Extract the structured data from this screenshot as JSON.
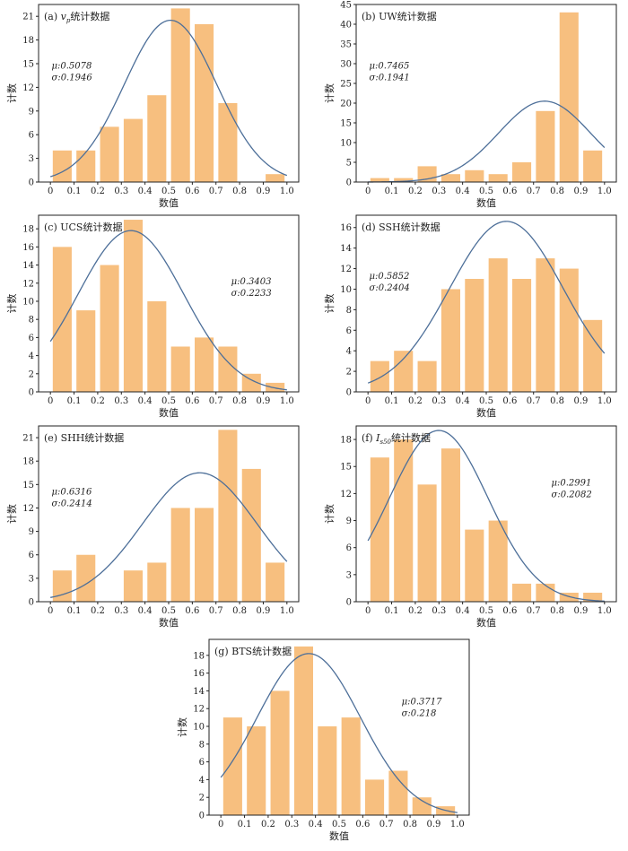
{
  "figure": {
    "xlabel": "数值",
    "ylabel": "计数",
    "colors": {
      "bar": "#f7bf7f",
      "curve": "#4d6f99"
    }
  },
  "chart_data": [
    {
      "id": "a",
      "type": "bar",
      "title": "(a) v_p统计数据",
      "title_parts": [
        "(a) ",
        "v",
        "p",
        "统计数据"
      ],
      "bar_centers": [
        0.05,
        0.15,
        0.25,
        0.35,
        0.45,
        0.55,
        0.65,
        0.75,
        0.95
      ],
      "values": [
        4,
        4,
        7,
        8,
        11,
        22,
        20,
        10,
        1
      ],
      "xticks": [
        "0",
        "0.1",
        "0.2",
        "0.3",
        "0.4",
        "0.5",
        "0.6",
        "0.7",
        "0.8",
        "0.9",
        "1.0"
      ],
      "yticks": [
        0,
        3,
        6,
        9,
        12,
        15,
        18,
        21
      ],
      "ylim": [
        0,
        22.5
      ],
      "xlim": [
        -0.05,
        1.05
      ],
      "mu": 0.5078,
      "sigma": 0.1946,
      "mu_label": "μ:0.5078",
      "sigma_label": "σ:0.1946",
      "curve_peak": 20.5
    },
    {
      "id": "b",
      "type": "bar",
      "title": "(b) UW统计数据",
      "bar_centers": [
        0.05,
        0.15,
        0.25,
        0.35,
        0.45,
        0.55,
        0.65,
        0.75,
        0.85,
        0.95
      ],
      "values": [
        1,
        1,
        4,
        2,
        3,
        2,
        5,
        18,
        43,
        8
      ],
      "xticks": [
        "0",
        "0.1",
        "0.2",
        "0.3",
        "0.4",
        "0.5",
        "0.6",
        "0.7",
        "0.8",
        "0.9",
        "1.0"
      ],
      "yticks": [
        0,
        5,
        10,
        15,
        20,
        25,
        30,
        35,
        40,
        45
      ],
      "ylim": [
        0,
        45
      ],
      "xlim": [
        -0.05,
        1.05
      ],
      "mu": 0.7465,
      "sigma": 0.1941,
      "mu_label": "μ:0.7465",
      "sigma_label": "σ:0.1941",
      "curve_peak": 20.5
    },
    {
      "id": "c",
      "type": "bar",
      "title": "(c) UCS统计数据",
      "bar_centers": [
        0.05,
        0.15,
        0.25,
        0.35,
        0.45,
        0.55,
        0.65,
        0.75,
        0.85,
        0.95
      ],
      "values": [
        16,
        9,
        14,
        19,
        10,
        5,
        6,
        5,
        2,
        1
      ],
      "xticks": [
        "0",
        "0.1",
        "0.2",
        "0.3",
        "0.4",
        "0.5",
        "0.6",
        "0.7",
        "0.8",
        "0.9",
        "1.0"
      ],
      "yticks": [
        0,
        2,
        4,
        6,
        8,
        10,
        12,
        14,
        16,
        18
      ],
      "ylim": [
        0,
        19.5
      ],
      "xlim": [
        -0.05,
        1.05
      ],
      "mu": 0.3403,
      "sigma": 0.2233,
      "mu_label": "μ:0.3403",
      "sigma_label": "σ:0.2233",
      "curve_peak": 17.8
    },
    {
      "id": "d",
      "type": "bar",
      "title": "(d) SSH统计数据",
      "bar_centers": [
        0.05,
        0.15,
        0.25,
        0.35,
        0.45,
        0.55,
        0.65,
        0.75,
        0.85,
        0.95
      ],
      "values": [
        3,
        4,
        3,
        10,
        11,
        13,
        11,
        13,
        12,
        7
      ],
      "xticks": [
        "0",
        "0.1",
        "0.2",
        "0.3",
        "0.4",
        "0.5",
        "0.6",
        "0.7",
        "0.8",
        "0.9",
        "1.0"
      ],
      "yticks": [
        0,
        2,
        4,
        6,
        8,
        10,
        12,
        14,
        16
      ],
      "ylim": [
        0,
        17.2
      ],
      "xlim": [
        -0.05,
        1.05
      ],
      "mu": 0.5852,
      "sigma": 0.2404,
      "mu_label": "μ:0.5852",
      "sigma_label": "σ:0.2404",
      "curve_peak": 16.6
    },
    {
      "id": "e",
      "type": "bar",
      "title": "(e) SHH统计数据",
      "bar_centers": [
        0.05,
        0.15,
        0.35,
        0.45,
        0.55,
        0.65,
        0.75,
        0.85,
        0.95
      ],
      "values": [
        4,
        6,
        4,
        5,
        12,
        12,
        22,
        17,
        5
      ],
      "xticks": [
        "0",
        "0.1",
        "0.2",
        "0.3",
        "0.4",
        "0.5",
        "0.6",
        "0.7",
        "0.8",
        "0.9",
        "1.0"
      ],
      "yticks": [
        0,
        3,
        6,
        9,
        12,
        15,
        18,
        21
      ],
      "ylim": [
        0,
        22.5
      ],
      "xlim": [
        -0.05,
        1.05
      ],
      "mu": 0.6316,
      "sigma": 0.2414,
      "mu_label": "μ:0.6316",
      "sigma_label": "σ:0.2414",
      "curve_peak": 16.5
    },
    {
      "id": "f",
      "type": "bar",
      "title": "(f) I_s50统计数据",
      "title_parts": [
        "(f) ",
        "I",
        "s50",
        "统计数据"
      ],
      "bar_centers": [
        0.05,
        0.15,
        0.25,
        0.35,
        0.45,
        0.55,
        0.65,
        0.75,
        0.85,
        0.95
      ],
      "values": [
        16,
        18,
        13,
        17,
        8,
        9,
        2,
        2,
        1,
        1
      ],
      "xticks": [
        "0",
        "0.1",
        "0.2",
        "0.3",
        "0.4",
        "0.5",
        "0.6",
        "0.7",
        "0.8",
        "0.9",
        "1.0"
      ],
      "yticks": [
        0,
        3,
        6,
        9,
        12,
        15,
        18
      ],
      "ylim": [
        0,
        19.5
      ],
      "xlim": [
        -0.05,
        1.05
      ],
      "mu": 0.2991,
      "sigma": 0.2082,
      "mu_label": "μ:0.2991",
      "sigma_label": "σ:0.2082",
      "curve_peak": 19.0
    },
    {
      "id": "g",
      "type": "bar",
      "title": "(g) BTS统计数据",
      "bar_centers": [
        0.05,
        0.15,
        0.25,
        0.35,
        0.45,
        0.55,
        0.65,
        0.75,
        0.85,
        0.95
      ],
      "values": [
        11,
        10,
        14,
        19,
        10,
        11,
        4,
        5,
        2,
        1
      ],
      "xticks": [
        "0",
        "0.1",
        "0.2",
        "0.3",
        "0.4",
        "0.5",
        "0.6",
        "0.7",
        "0.8",
        "0.9",
        "1.0"
      ],
      "yticks": [
        0,
        2,
        4,
        6,
        8,
        10,
        12,
        14,
        16,
        18
      ],
      "ylim": [
        0,
        19.8
      ],
      "xlim": [
        -0.05,
        1.05
      ],
      "mu": 0.3717,
      "sigma": 0.218,
      "mu_label": "μ:0.3717",
      "sigma_label": "σ:0.218",
      "curve_peak": 18.2
    }
  ]
}
